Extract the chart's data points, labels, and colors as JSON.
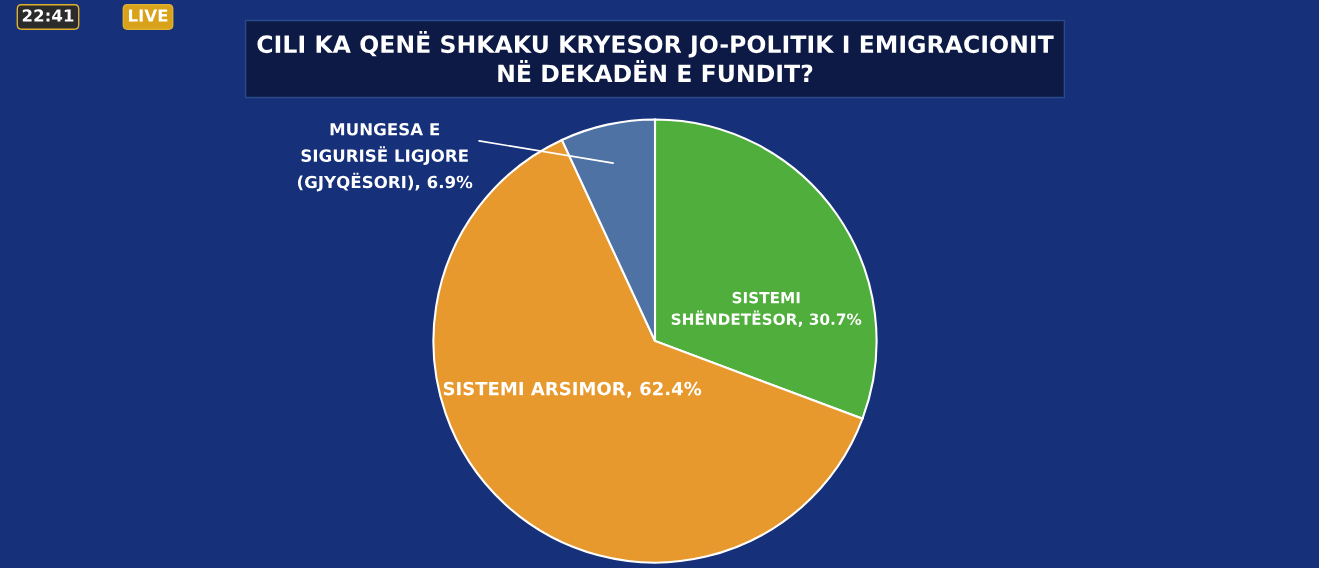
{
  "chart_data": {
    "type": "pie",
    "title": "CILI KA QENË SHKAKU KRYESOR JO-POLITIK I EMIGRACIONIT\nNË DEKADËN E FUNDIT?",
    "categories": [
      "SISTEMI\nSHËNDETËSOR",
      "SISTEMI ARSIMOR",
      "MUNGESA E\nSIGURISË LIGJORE\n(GJYQËSORI)"
    ],
    "values": [
      30.7,
      62.4,
      6.9
    ],
    "value_labels": [
      "30.7%",
      "62.4%",
      "6.9%"
    ],
    "colors": [
      "#4fae3c",
      "#e8992e",
      "#4d72a3"
    ],
    "annotations": [
      "22:41",
      "LIVE"
    ],
    "legend": false
  }
}
